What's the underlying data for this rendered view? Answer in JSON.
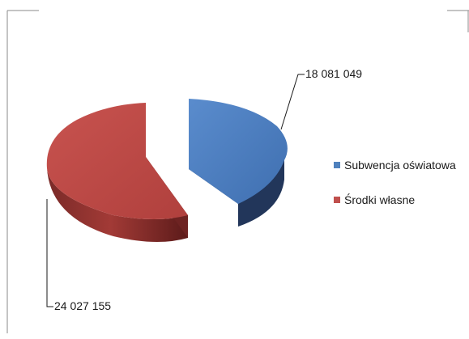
{
  "chart_data": {
    "type": "pie",
    "style": "3d-exploded",
    "title": "",
    "series": [
      {
        "name": "",
        "values": [
          18081049,
          24027155
        ],
        "labels": [
          "18 081 049",
          "24 027 155"
        ]
      }
    ],
    "categories": [
      "Subwencja oświatowa",
      "Środki własne"
    ],
    "colors": [
      "#4F81BD",
      "#C0504D"
    ],
    "legend": "right"
  }
}
